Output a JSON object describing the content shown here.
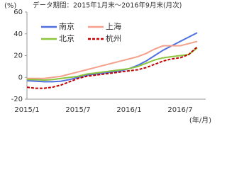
{
  "chart_data": {
    "type": "line",
    "y_label": "(%)",
    "subtitle": "データ期間：2015年1月末～2016年9月末(月次)",
    "x_label": "(年/月)",
    "categories": [
      "2015/1",
      null,
      null,
      null,
      null,
      null,
      "2015/7",
      null,
      null,
      null,
      null,
      null,
      "2016/1",
      null,
      null,
      null,
      null,
      null,
      "2016/7",
      null,
      null
    ],
    "ylim": [
      -20,
      60
    ],
    "yticks": [
      -20,
      0,
      20,
      40,
      60
    ],
    "series": [
      {
        "name": "南京",
        "color": "#4f6fe0",
        "dashed": false,
        "values": [
          -3,
          -3.5,
          -4,
          -4,
          -3.5,
          -2,
          0,
          2,
          3,
          4,
          5,
          6,
          8,
          11,
          15,
          20,
          25,
          29,
          33,
          37,
          41
        ]
      },
      {
        "name": "上海",
        "color": "#f4a08a",
        "dashed": false,
        "values": [
          -1,
          -1,
          -1,
          0,
          1,
          3,
          5,
          7,
          9,
          11,
          13,
          15,
          17,
          19,
          22,
          26,
          29,
          29,
          29,
          31,
          33
        ]
      },
      {
        "name": "北京",
        "color": "#8cc43c",
        "dashed": false,
        "values": [
          -2,
          -2,
          -2.5,
          -2,
          -1,
          0,
          1,
          3,
          4,
          5,
          6,
          7,
          8,
          10,
          13,
          16,
          18,
          19,
          20,
          21,
          27
        ]
      },
      {
        "name": "杭州",
        "color": "#c00000",
        "dashed": true,
        "values": [
          -9,
          -10,
          -10,
          -9,
          -7,
          -4,
          -1,
          1,
          2,
          3,
          4,
          5,
          6,
          7,
          9,
          12,
          15,
          17,
          18,
          21,
          28
        ]
      }
    ]
  }
}
